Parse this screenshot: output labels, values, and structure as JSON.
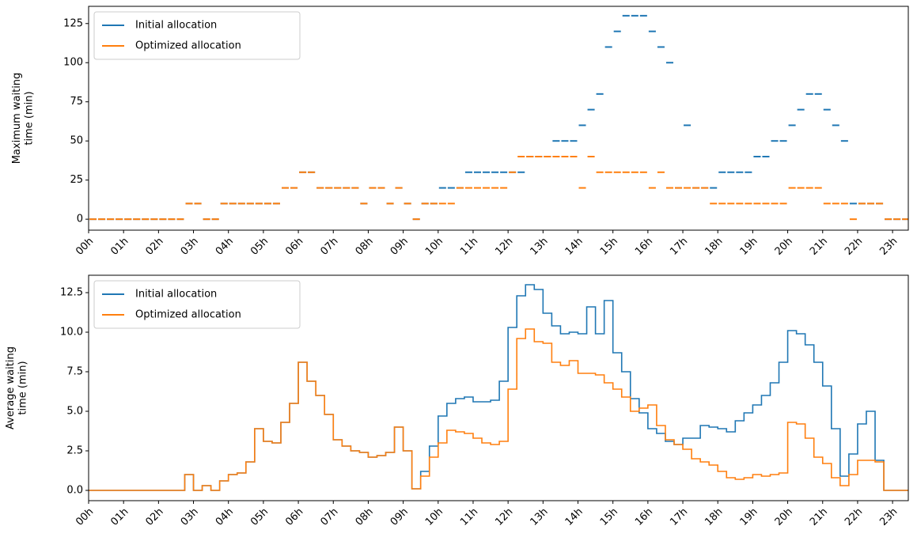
{
  "chart_data": [
    {
      "type": "segment",
      "ylabel": [
        "Maximum waiting",
        "time (min)"
      ],
      "x": [
        0,
        0.25,
        0.5,
        0.75,
        1,
        1.25,
        1.5,
        1.75,
        2,
        2.25,
        2.5,
        2.75,
        3,
        3.25,
        3.5,
        3.75,
        4,
        4.25,
        4.5,
        4.75,
        5,
        5.25,
        5.5,
        5.75,
        6,
        6.25,
        6.5,
        6.75,
        7,
        7.25,
        7.5,
        7.75,
        8,
        8.25,
        8.5,
        8.75,
        9,
        9.25,
        9.5,
        9.75,
        10,
        10.25,
        10.5,
        10.75,
        11,
        11.25,
        11.5,
        11.75,
        12,
        12.25,
        12.5,
        12.75,
        13,
        13.25,
        13.5,
        13.75,
        14,
        14.25,
        14.5,
        14.75,
        15,
        15.25,
        15.5,
        15.75,
        16,
        16.25,
        16.5,
        16.75,
        17,
        17.25,
        17.5,
        17.75,
        18,
        18.25,
        18.5,
        18.75,
        19,
        19.25,
        19.5,
        19.75,
        20,
        20.25,
        20.5,
        20.75,
        21,
        21.25,
        21.5,
        21.75,
        22,
        22.25,
        22.5,
        22.75,
        23,
        23.25
      ],
      "series": [
        {
          "name": "Initial allocation",
          "color": "#1f77b4",
          "values": [
            0,
            0,
            0,
            0,
            0,
            0,
            0,
            0,
            0,
            0,
            0,
            10,
            10,
            0,
            0,
            10,
            10,
            10,
            10,
            10,
            10,
            10,
            20,
            20,
            30,
            30,
            20,
            20,
            20,
            20,
            20,
            10,
            20,
            20,
            10,
            20,
            10,
            0,
            10,
            10,
            20,
            20,
            20,
            30,
            30,
            30,
            30,
            30,
            30,
            30,
            40,
            40,
            40,
            50,
            50,
            50,
            60,
            70,
            80,
            110,
            120,
            130,
            130,
            130,
            120,
            110,
            100,
            20,
            60,
            20,
            20,
            20,
            30,
            30,
            30,
            30,
            40,
            40,
            50,
            50,
            60,
            70,
            80,
            80,
            70,
            60,
            50,
            10,
            10,
            10,
            10,
            0,
            0,
            0
          ]
        },
        {
          "name": "Optimized allocation",
          "color": "#ff7f0e",
          "values": [
            0,
            0,
            0,
            0,
            0,
            0,
            0,
            0,
            0,
            0,
            0,
            10,
            10,
            0,
            0,
            10,
            10,
            10,
            10,
            10,
            10,
            10,
            20,
            20,
            30,
            30,
            20,
            20,
            20,
            20,
            20,
            10,
            20,
            20,
            10,
            20,
            10,
            0,
            10,
            10,
            10,
            10,
            20,
            20,
            20,
            20,
            20,
            20,
            30,
            40,
            40,
            40,
            40,
            40,
            40,
            40,
            20,
            40,
            30,
            30,
            30,
            30,
            30,
            30,
            20,
            30,
            20,
            20,
            20,
            20,
            20,
            10,
            10,
            10,
            10,
            10,
            10,
            10,
            10,
            10,
            20,
            20,
            20,
            20,
            10,
            10,
            10,
            0,
            10,
            10,
            10,
            0,
            0,
            0
          ]
        }
      ],
      "xlim": [
        0,
        23.45
      ],
      "xticks": [
        {
          "value": 0,
          "label": "00h"
        },
        {
          "value": 1,
          "label": "01h"
        },
        {
          "value": 2,
          "label": "02h"
        },
        {
          "value": 3,
          "label": "03h"
        },
        {
          "value": 4,
          "label": "04h"
        },
        {
          "value": 5,
          "label": "05h"
        },
        {
          "value": 6,
          "label": "06h"
        },
        {
          "value": 7,
          "label": "07h"
        },
        {
          "value": 8,
          "label": "08h"
        },
        {
          "value": 9,
          "label": "09h"
        },
        {
          "value": 10,
          "label": "10h"
        },
        {
          "value": 11,
          "label": "11h"
        },
        {
          "value": 12,
          "label": "12h"
        },
        {
          "value": 13,
          "label": "13h"
        },
        {
          "value": 14,
          "label": "14h"
        },
        {
          "value": 15,
          "label": "15h"
        },
        {
          "value": 16,
          "label": "16h"
        },
        {
          "value": 17,
          "label": "17h"
        },
        {
          "value": 18,
          "label": "18h"
        },
        {
          "value": 19,
          "label": "19h"
        },
        {
          "value": 20,
          "label": "20h"
        },
        {
          "value": 21,
          "label": "21h"
        },
        {
          "value": 22,
          "label": "22h"
        },
        {
          "value": 23,
          "label": "23h"
        }
      ],
      "ylim": [
        -7,
        136
      ],
      "yticks": [
        0,
        25,
        50,
        75,
        100,
        125
      ],
      "legend": "upper left"
    },
    {
      "type": "step",
      "ylabel": [
        "Average waiting",
        "time (min)"
      ],
      "x": [
        0,
        0.25,
        0.5,
        0.75,
        1,
        1.25,
        1.5,
        1.75,
        2,
        2.25,
        2.5,
        2.75,
        3,
        3.25,
        3.5,
        3.75,
        4,
        4.25,
        4.5,
        4.75,
        5,
        5.25,
        5.5,
        5.75,
        6,
        6.25,
        6.5,
        6.75,
        7,
        7.25,
        7.5,
        7.75,
        8,
        8.25,
        8.5,
        8.75,
        9,
        9.25,
        9.5,
        9.75,
        10,
        10.25,
        10.5,
        10.75,
        11,
        11.25,
        11.5,
        11.75,
        12,
        12.25,
        12.5,
        12.75,
        13,
        13.25,
        13.5,
        13.75,
        14,
        14.25,
        14.5,
        14.75,
        15,
        15.25,
        15.5,
        15.75,
        16,
        16.25,
        16.5,
        16.75,
        17,
        17.25,
        17.5,
        17.75,
        18,
        18.25,
        18.5,
        18.75,
        19,
        19.25,
        19.5,
        19.75,
        20,
        20.25,
        20.5,
        20.75,
        21,
        21.25,
        21.5,
        21.75,
        22,
        22.25,
        22.5,
        22.75,
        23,
        23.25
      ],
      "series": [
        {
          "name": "Initial allocation",
          "color": "#1f77b4",
          "values": [
            0,
            0,
            0,
            0,
            0,
            0,
            0,
            0,
            0,
            0,
            0,
            1.0,
            0,
            0.3,
            0,
            0.6,
            1.0,
            1.1,
            1.8,
            3.9,
            3.1,
            3.0,
            4.3,
            5.5,
            8.1,
            6.9,
            6.0,
            4.8,
            3.2,
            2.8,
            2.5,
            2.4,
            2.1,
            2.2,
            2.4,
            4.0,
            2.5,
            0.1,
            1.2,
            2.8,
            4.7,
            5.5,
            5.8,
            5.9,
            5.6,
            5.6,
            5.7,
            6.9,
            10.3,
            12.3,
            13.0,
            12.7,
            11.2,
            10.4,
            9.9,
            10.0,
            9.9,
            11.6,
            9.9,
            12.0,
            8.7,
            7.5,
            5.8,
            4.9,
            3.9,
            3.6,
            3.1,
            2.9,
            3.3,
            3.3,
            4.1,
            4.0,
            3.9,
            3.7,
            4.4,
            4.9,
            5.4,
            6.0,
            6.8,
            8.1,
            10.1,
            9.9,
            9.2,
            8.1,
            6.6,
            3.9,
            0.9,
            2.3,
            4.2,
            5.0,
            1.9,
            0,
            0,
            0
          ]
        },
        {
          "name": "Optimized allocation",
          "color": "#ff7f0e",
          "values": [
            0,
            0,
            0,
            0,
            0,
            0,
            0,
            0,
            0,
            0,
            0,
            1.0,
            0,
            0.3,
            0,
            0.6,
            1.0,
            1.1,
            1.8,
            3.9,
            3.1,
            3.0,
            4.3,
            5.5,
            8.1,
            6.9,
            6.0,
            4.8,
            3.2,
            2.8,
            2.5,
            2.4,
            2.1,
            2.2,
            2.4,
            4.0,
            2.5,
            0.1,
            0.9,
            2.1,
            3.0,
            3.8,
            3.7,
            3.6,
            3.3,
            3.0,
            2.9,
            3.1,
            6.4,
            9.6,
            10.2,
            9.4,
            9.3,
            8.1,
            7.9,
            8.2,
            7.4,
            7.4,
            7.3,
            6.8,
            6.4,
            5.9,
            5.0,
            5.2,
            5.4,
            4.1,
            3.2,
            2.9,
            2.6,
            2.0,
            1.8,
            1.6,
            1.2,
            0.8,
            0.7,
            0.8,
            1.0,
            0.9,
            1.0,
            1.1,
            4.3,
            4.2,
            3.3,
            2.1,
            1.7,
            0.8,
            0.3,
            1.0,
            1.9,
            1.9,
            1.8,
            0,
            0,
            0
          ]
        }
      ],
      "xlim": [
        0,
        23.45
      ],
      "xticks": [
        {
          "value": 0,
          "label": "00h"
        },
        {
          "value": 1,
          "label": "01h"
        },
        {
          "value": 2,
          "label": "02h"
        },
        {
          "value": 3,
          "label": "03h"
        },
        {
          "value": 4,
          "label": "04h"
        },
        {
          "value": 5,
          "label": "05h"
        },
        {
          "value": 6,
          "label": "06h"
        },
        {
          "value": 7,
          "label": "07h"
        },
        {
          "value": 8,
          "label": "08h"
        },
        {
          "value": 9,
          "label": "09h"
        },
        {
          "value": 10,
          "label": "10h"
        },
        {
          "value": 11,
          "label": "11h"
        },
        {
          "value": 12,
          "label": "12h"
        },
        {
          "value": 13,
          "label": "13h"
        },
        {
          "value": 14,
          "label": "14h"
        },
        {
          "value": 15,
          "label": "15h"
        },
        {
          "value": 16,
          "label": "16h"
        },
        {
          "value": 17,
          "label": "17h"
        },
        {
          "value": 18,
          "label": "18h"
        },
        {
          "value": 19,
          "label": "19h"
        },
        {
          "value": 20,
          "label": "20h"
        },
        {
          "value": 21,
          "label": "21h"
        },
        {
          "value": 22,
          "label": "22h"
        },
        {
          "value": 23,
          "label": "23h"
        }
      ],
      "ylim": [
        -0.65,
        13.6
      ],
      "yticks": [
        {
          "value": 0,
          "label": "0.0"
        },
        2.5,
        {
          "value": 5,
          "label": "5.0"
        },
        7.5,
        {
          "value": 10,
          "label": "10.0"
        },
        12.5
      ],
      "legend": "upper left"
    }
  ]
}
